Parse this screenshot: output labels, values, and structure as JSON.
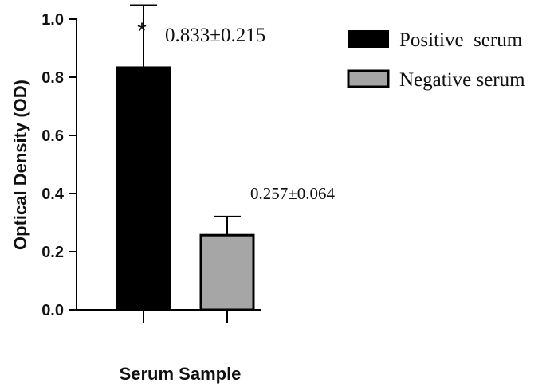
{
  "chart_data": {
    "type": "bar",
    "categories": [
      "Positive  serum",
      "Negative serum"
    ],
    "values": [
      0.833,
      0.257
    ],
    "errors": [
      0.215,
      0.064
    ],
    "colors": [
      "#000000",
      "#a6a6a6"
    ],
    "value_labels": [
      "0.833±0.215",
      "0.257±0.064"
    ],
    "significance_marker": "*",
    "xlabel": "Serum Sample",
    "ylabel": "Optical Density (OD)",
    "ylim": [
      0,
      1.0
    ],
    "yticks": [
      "0.0",
      "0.2",
      "0.4",
      "0.6",
      "0.8",
      "1.0"
    ],
    "grid": false,
    "legend": {
      "position": "top-right",
      "entries": [
        "Positive  serum",
        "Negative serum"
      ]
    }
  }
}
